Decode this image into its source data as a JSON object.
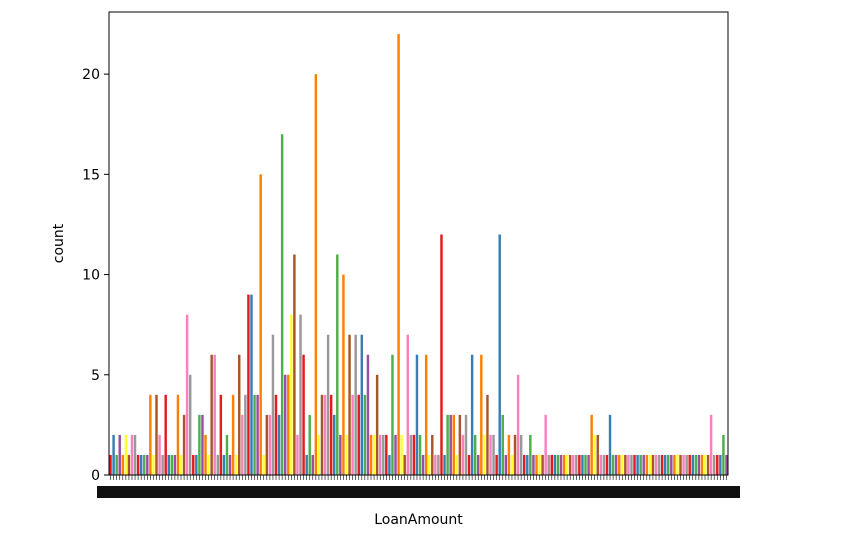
{
  "chart_data": {
    "type": "bar",
    "xlabel": "LoanAmount",
    "ylabel": "count",
    "ylim": [
      0,
      23.1
    ],
    "yticks": [
      0,
      5,
      10,
      15,
      20
    ],
    "grid": false,
    "legend": "none",
    "palette": [
      "#e41a1c",
      "#377eb8",
      "#4daf4a",
      "#984ea3",
      "#ff7f00",
      "#ffff33",
      "#a65628",
      "#f781bf",
      "#999999"
    ],
    "category_count": 202,
    "values": [
      1,
      2,
      1,
      2,
      1,
      2,
      1,
      2,
      2,
      1,
      1,
      1,
      1,
      4,
      1,
      4,
      2,
      1,
      4,
      1,
      1,
      1,
      4,
      1,
      3,
      8,
      5,
      1,
      1,
      3,
      3,
      2,
      1,
      6,
      6,
      1,
      4,
      1,
      2,
      1,
      4,
      1,
      6,
      3,
      4,
      9,
      9,
      4,
      4,
      15,
      1,
      3,
      3,
      7,
      4,
      3,
      17,
      5,
      5,
      8,
      11,
      2,
      8,
      6,
      1,
      3,
      1,
      20,
      2,
      4,
      4,
      7,
      4,
      3,
      11,
      2,
      10,
      2,
      7,
      4,
      7,
      4,
      7,
      4,
      6,
      2,
      2,
      5,
      2,
      2,
      2,
      1,
      6,
      2,
      22,
      2,
      1,
      7,
      2,
      2,
      6,
      2,
      1,
      6,
      1,
      2,
      1,
      1,
      12,
      1,
      3,
      3,
      3,
      1,
      3,
      2,
      3,
      1,
      6,
      2,
      1,
      6,
      2,
      4,
      2,
      2,
      1,
      12,
      3,
      1,
      2,
      1,
      2,
      5,
      2,
      1,
      1,
      2,
      1,
      1,
      1,
      1,
      3,
      1,
      1,
      1,
      1,
      1,
      1,
      1,
      1,
      1,
      1,
      1,
      1,
      1,
      1,
      3,
      2,
      2,
      1,
      1,
      1,
      3,
      1,
      1,
      1,
      1,
      1,
      1,
      1,
      1,
      1,
      1,
      1,
      1,
      1,
      1,
      1,
      1,
      1,
      1,
      1,
      1,
      1,
      1,
      1,
      1,
      1,
      1,
      1,
      1,
      1,
      1,
      1,
      1,
      3,
      1,
      1,
      1,
      2,
      1
    ]
  }
}
